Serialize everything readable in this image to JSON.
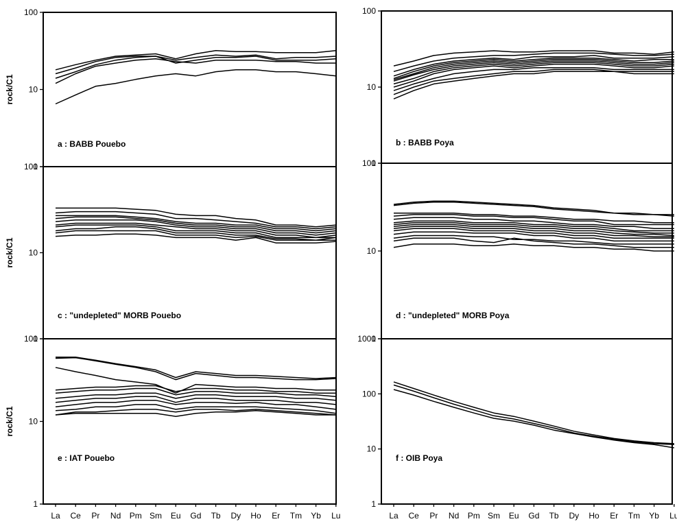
{
  "chart_data": [
    {
      "type": "line",
      "title": "a : BABB Pouebo",
      "ylabel": "rock/C1",
      "xlabel": "",
      "yscale": "log",
      "ylim": [
        1,
        100
      ],
      "yticks": [
        "1",
        "10",
        "100"
      ],
      "categories": [
        "La",
        "Ce",
        "Pr",
        "Nd",
        "Pm",
        "Sm",
        "Eu",
        "Gd",
        "Tb",
        "Dy",
        "Ho",
        "Er",
        "Tm",
        "Yb",
        "Lu"
      ],
      "series": [
        {
          "values": [
            18,
            21,
            24,
            27,
            28,
            29,
            25,
            29,
            32,
            31,
            31,
            30,
            30,
            30,
            32
          ]
        },
        {
          "values": [
            16,
            19,
            23,
            26,
            27,
            27,
            24,
            26,
            28,
            27,
            28,
            25,
            26,
            26,
            27
          ]
        },
        {
          "values": [
            14,
            17,
            21,
            24,
            26,
            27,
            22,
            24,
            26,
            26,
            27,
            24,
            24,
            24,
            25
          ]
        },
        {
          "values": [
            12,
            16,
            20,
            22,
            24,
            25,
            23,
            22,
            24,
            24,
            24,
            23,
            23,
            22,
            22
          ]
        },
        {
          "values": [
            6.5,
            8.5,
            11,
            12,
            13.5,
            15,
            16,
            15,
            17,
            18,
            18,
            17,
            17,
            16,
            15
          ]
        }
      ]
    },
    {
      "type": "line",
      "title": "b : BABB  Poya",
      "ylabel": "",
      "xlabel": "",
      "yscale": "log",
      "ylim": [
        1,
        100
      ],
      "yticks": [
        "1",
        "10",
        "100"
      ],
      "categories": [
        "La",
        "Ce",
        "Pr",
        "Nd",
        "Pm",
        "Sm",
        "Eu",
        "Gd",
        "Tb",
        "Dy",
        "Ho",
        "Er",
        "Tm",
        "Yb",
        "Lu"
      ],
      "series": [
        {
          "values": [
            19,
            22,
            26,
            28,
            29,
            30,
            29,
            29,
            30,
            30,
            30,
            28,
            28,
            27,
            29
          ]
        },
        {
          "values": [
            16,
            19,
            22,
            24,
            25,
            26,
            26,
            27,
            28,
            28,
            28,
            27,
            26,
            26,
            27
          ]
        },
        {
          "values": [
            14,
            17,
            20,
            22,
            23,
            24,
            23,
            25,
            25,
            25,
            26,
            24,
            24,
            24,
            25
          ]
        },
        {
          "values": [
            13,
            16,
            19,
            21,
            22,
            23,
            22,
            23,
            24,
            24,
            24,
            23,
            22,
            23,
            23
          ]
        },
        {
          "values": [
            12.5,
            15,
            18,
            20,
            21,
            22,
            21,
            22,
            23,
            23,
            23,
            22,
            21,
            21,
            22
          ]
        },
        {
          "values": [
            12,
            14.5,
            17,
            19,
            20,
            21,
            20,
            21,
            22,
            22,
            22,
            21,
            20,
            20,
            21
          ]
        },
        {
          "values": [
            11,
            13,
            16,
            18,
            19,
            20,
            19,
            20,
            21,
            21,
            21,
            20,
            19,
            19,
            20
          ]
        },
        {
          "values": [
            10,
            12,
            15,
            17,
            18,
            19,
            18,
            19,
            20,
            20,
            20,
            19,
            18,
            18,
            19
          ]
        },
        {
          "values": [
            9,
            11,
            13,
            15,
            16,
            17,
            17,
            18,
            18,
            18,
            18,
            17,
            17,
            17,
            17
          ]
        },
        {
          "values": [
            8,
            10,
            12,
            13,
            14,
            15,
            16,
            16,
            17,
            17,
            17,
            16,
            16,
            16,
            16
          ]
        },
        {
          "values": [
            7,
            9,
            11,
            12,
            13,
            14,
            15,
            15,
            16,
            16,
            16,
            16,
            15,
            15,
            15
          ]
        }
      ]
    },
    {
      "type": "line",
      "title": "c  : \"undepleted\" MORB Pouebo",
      "ylabel": "rock/C1",
      "xlabel": "",
      "yscale": "log",
      "ylim": [
        1,
        100
      ],
      "yticks": [
        "1",
        "10",
        "100"
      ],
      "categories": [
        "La",
        "Ce",
        "Pr",
        "Nd",
        "Pm",
        "Sm",
        "Eu",
        "Gd",
        "Tb",
        "Dy",
        "Ho",
        "Er",
        "Tm",
        "Yb",
        "Lu"
      ],
      "series": [
        {
          "values": [
            33,
            33,
            33,
            33,
            32,
            31,
            28,
            27,
            27,
            25,
            24,
            21,
            21,
            20,
            21
          ]
        },
        {
          "values": [
            29,
            30,
            30,
            30,
            29,
            28,
            25,
            25,
            24,
            23,
            22,
            20,
            20,
            19,
            20
          ]
        },
        {
          "values": [
            27,
            27,
            27,
            27,
            26,
            25,
            23,
            22,
            22,
            21,
            21,
            19,
            19,
            18,
            19
          ]
        },
        {
          "values": [
            25,
            26,
            26,
            26,
            25,
            24,
            22,
            21,
            21,
            20,
            20,
            18,
            18,
            17,
            18
          ]
        },
        {
          "values": [
            23,
            24,
            24,
            24,
            24,
            23,
            21,
            20,
            20,
            19,
            19,
            17,
            17,
            16,
            17
          ]
        },
        {
          "values": [
            21,
            22,
            22,
            22,
            22,
            21,
            20,
            19,
            19,
            18,
            18,
            16,
            16,
            15,
            16
          ]
        },
        {
          "values": [
            20,
            21,
            21,
            21,
            21,
            20,
            18,
            18,
            18,
            17,
            17,
            15,
            15,
            15,
            15
          ]
        },
        {
          "values": [
            18,
            19,
            19,
            20,
            20,
            19,
            17,
            17,
            17,
            16,
            16,
            14.5,
            14.5,
            14,
            15
          ]
        },
        {
          "values": [
            17,
            18,
            18,
            18,
            18,
            18,
            16,
            16,
            16,
            15,
            15.5,
            14,
            14,
            14,
            14
          ]
        },
        {
          "values": [
            15.5,
            16,
            16,
            16.5,
            16.5,
            16,
            15,
            15,
            15,
            14,
            15,
            13,
            13,
            13,
            13.5
          ]
        }
      ]
    },
    {
      "type": "line",
      "title": "d : \"undepleted\" MORB Poya",
      "ylabel": "",
      "xlabel": "",
      "yscale": "log",
      "ylim": [
        1,
        100
      ],
      "yticks": [
        "1",
        "10",
        "100"
      ],
      "categories": [
        "La",
        "Ce",
        "Pr",
        "Nd",
        "Pm",
        "Sm",
        "Eu",
        "Gd",
        "Tb",
        "Dy",
        "Ho",
        "Er",
        "Tm",
        "Yb",
        "Lu"
      ],
      "series": [
        {
          "values": [
            34,
            36,
            37,
            37,
            36,
            35,
            34,
            33,
            31,
            30,
            29,
            27,
            27,
            26,
            26
          ]
        },
        {
          "values": [
            33,
            35,
            36,
            36,
            35,
            34,
            33,
            32,
            30,
            29,
            28,
            27,
            26,
            26,
            25
          ]
        },
        {
          "values": [
            27,
            27,
            27,
            27,
            26,
            26,
            25,
            25,
            24,
            23,
            23,
            22,
            22,
            21,
            21
          ]
        },
        {
          "values": [
            25,
            26,
            26,
            26,
            25,
            25,
            24,
            24,
            23,
            22,
            22,
            20,
            20,
            20,
            20
          ]
        },
        {
          "values": [
            23,
            24,
            24,
            24,
            23,
            23,
            22,
            22,
            21,
            20,
            20,
            19,
            19,
            18,
            18
          ]
        },
        {
          "values": [
            21,
            22,
            22,
            22,
            21,
            21,
            21,
            20,
            20,
            19,
            19,
            18,
            17,
            17,
            17
          ]
        },
        {
          "values": [
            20,
            21,
            21,
            21,
            20,
            20,
            20,
            19,
            19,
            18,
            18,
            17,
            16.5,
            16,
            16
          ]
        },
        {
          "values": [
            19,
            20,
            20,
            20,
            19,
            19,
            19,
            18,
            18,
            17,
            17,
            16,
            15.5,
            15.5,
            15
          ]
        },
        {
          "values": [
            18,
            19,
            19,
            19,
            18,
            18,
            18,
            17,
            17,
            16,
            16,
            15,
            15,
            14.5,
            14.5
          ]
        },
        {
          "values": [
            17,
            18,
            18,
            18,
            17,
            17,
            17,
            16,
            16,
            15,
            15,
            14,
            14,
            14,
            14
          ]
        },
        {
          "values": [
            15.5,
            16.5,
            16.5,
            16.5,
            16,
            16,
            16,
            15,
            15,
            14,
            14,
            13,
            13,
            13,
            13
          ]
        },
        {
          "values": [
            14,
            15,
            15,
            15,
            14.5,
            14.5,
            13.5,
            13.5,
            13,
            13,
            12.5,
            12,
            12,
            12,
            12
          ]
        },
        {
          "values": [
            13,
            14,
            14,
            14,
            13,
            12.5,
            14,
            13,
            12.5,
            12,
            12,
            11.5,
            11,
            11,
            11
          ]
        },
        {
          "values": [
            11,
            12,
            12,
            12,
            11.5,
            11.5,
            12,
            11.5,
            11.5,
            11,
            11,
            10.5,
            10.5,
            10,
            10
          ]
        }
      ]
    },
    {
      "type": "line",
      "title": "e : IAT Pouebo",
      "ylabel": "rock/C1",
      "xlabel": "",
      "yscale": "log",
      "ylim": [
        1,
        100
      ],
      "yticks": [
        "1",
        "10",
        "100"
      ],
      "categories": [
        "La",
        "Ce",
        "Pr",
        "Nd",
        "Pm",
        "Sm",
        "Eu",
        "Gd",
        "Tb",
        "Dy",
        "Ho",
        "Er",
        "Tm",
        "Yb",
        "Lu"
      ],
      "series": [
        {
          "values": [
            60,
            60,
            55,
            50,
            46,
            42,
            34,
            40,
            38,
            36,
            36,
            35,
            34,
            33,
            34
          ]
        },
        {
          "values": [
            58,
            59,
            54,
            49,
            45,
            40,
            32,
            38,
            36,
            34,
            34,
            33,
            32,
            32,
            33
          ]
        },
        {
          "values": [
            45,
            40,
            36,
            32,
            30,
            28,
            22,
            28,
            27,
            26,
            26,
            25,
            25,
            24,
            24
          ]
        },
        {
          "values": [
            24,
            25,
            26,
            26,
            27,
            27,
            23,
            25,
            25,
            24,
            24,
            23,
            23,
            22,
            22
          ]
        },
        {
          "values": [
            22,
            23,
            24,
            24,
            25,
            25,
            21,
            23,
            23,
            22,
            22,
            22,
            21,
            21,
            20
          ]
        },
        {
          "values": [
            19,
            20,
            21,
            21,
            22,
            22,
            19,
            21,
            21,
            20,
            20,
            20,
            19,
            19,
            18
          ]
        },
        {
          "values": [
            17,
            18,
            19,
            19,
            20,
            20,
            17,
            19,
            19,
            18,
            18,
            18,
            17,
            17,
            16
          ]
        },
        {
          "values": [
            15,
            16,
            17,
            17,
            18,
            18,
            16,
            17,
            17,
            16.5,
            17,
            16,
            16,
            15,
            14
          ]
        },
        {
          "values": [
            13.5,
            14,
            15,
            15,
            16,
            16,
            14,
            15,
            15,
            15,
            15,
            14.5,
            14,
            13.5,
            12.5
          ]
        },
        {
          "values": [
            12,
            13,
            13,
            13.5,
            14,
            14,
            13,
            14,
            14,
            13.5,
            14,
            13.5,
            13,
            12.5,
            12
          ]
        },
        {
          "values": [
            12,
            12.5,
            12.5,
            12.5,
            12.5,
            12.5,
            11.5,
            12.5,
            13,
            13,
            13.5,
            13,
            12.5,
            12,
            12
          ]
        }
      ]
    },
    {
      "type": "line",
      "title": "f : OIB Poya",
      "ylabel": "",
      "xlabel": "",
      "yscale": "log",
      "ylim": [
        1,
        1000
      ],
      "yticks": [
        "1",
        "10",
        "100",
        "1000"
      ],
      "categories": [
        "La",
        "Ce",
        "Pr",
        "Nd",
        "Pm",
        "Sm",
        "Eu",
        "Gd",
        "Tb",
        "Dy",
        "Ho",
        "Er",
        "Tm",
        "Yb",
        "Lu"
      ],
      "series": [
        {
          "values": [
            165,
            125,
            95,
            73,
            57,
            45,
            39,
            32,
            26,
            21,
            18,
            15.5,
            14,
            13,
            12.5
          ]
        },
        {
          "values": [
            145,
            112,
            85,
            65,
            51,
            40,
            35,
            29,
            24,
            19.5,
            17,
            15,
            13.5,
            12.5,
            12
          ]
        },
        {
          "values": [
            120,
            95,
            73,
            57,
            45,
            36,
            32,
            27,
            22,
            19,
            16.5,
            14.5,
            13,
            12,
            10.5
          ]
        }
      ]
    }
  ]
}
